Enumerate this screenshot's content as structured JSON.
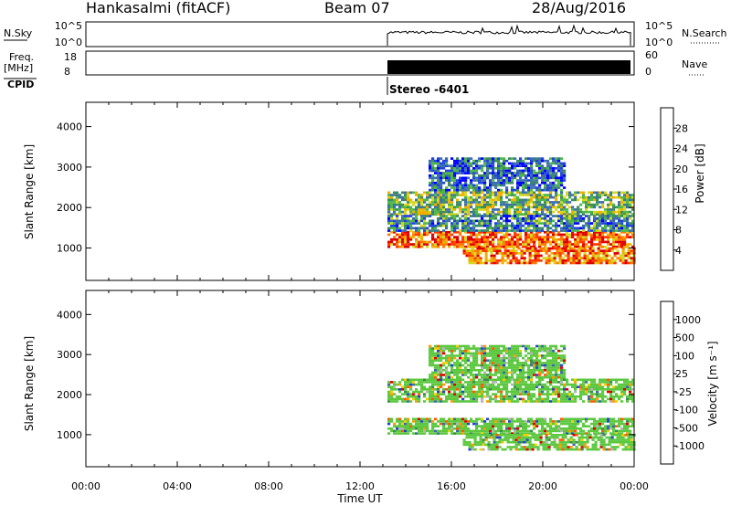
{
  "header": {
    "station": "Hankasalmi (fitACF)",
    "beam": "Beam 07",
    "date": "28/Aug/2016"
  },
  "strip": {
    "nsky_label": "N.Sky",
    "nsky_ticks": [
      "10^5",
      "10^0"
    ],
    "nsearch_ticks": [
      "10^5",
      "10^0"
    ],
    "nsearch_label": "N.Search",
    "freq_label": "Freq.",
    "freq_unit": "[MHz]",
    "freq_ticks": [
      "18",
      "8"
    ],
    "nave_ticks": [
      "60",
      "0"
    ],
    "nave_label": "Nave",
    "cpid_label": "CPID",
    "cpid_value": "Stereo -6401"
  },
  "chart_data": [
    {
      "type": "heatmap",
      "ylabel": "Slant Range [km]",
      "ylim": [
        200,
        4600
      ],
      "yticks": [
        "1000",
        "2000",
        "3000",
        "4000"
      ],
      "xlim_hours": [
        0,
        24
      ],
      "data_start_hour": 13.2,
      "colorbar": {
        "label": "Power [dB]",
        "ticks": [
          "28",
          "24",
          "20",
          "16",
          "12",
          "8",
          "4"
        ],
        "colors": [
          "#0000ff",
          "#2244dd",
          "#3d6fb0",
          "#3c8c5c",
          "#4db848",
          "#d6d820",
          "#f0b000",
          "#ff7a00",
          "#ff3a00",
          "#e00000"
        ]
      },
      "bands": [
        {
          "start": 13.2,
          "end": 24,
          "range_km": [
            1000,
            1400
          ],
          "level": 0.8
        },
        {
          "start": 16.5,
          "end": 24,
          "range_km": [
            600,
            1000
          ],
          "level": 0.75
        },
        {
          "start": 13.2,
          "end": 24,
          "range_km": [
            1800,
            2400
          ],
          "level": 0.45
        },
        {
          "start": 15.0,
          "end": 21.0,
          "range_km": [
            2400,
            3200
          ],
          "level": 0.25
        },
        {
          "start": 13.2,
          "end": 24,
          "range_km": [
            1400,
            1800
          ],
          "level": 0.3
        }
      ]
    },
    {
      "type": "heatmap",
      "ylabel": "Slant Range [km]",
      "ylim": [
        200,
        4600
      ],
      "yticks": [
        "1000",
        "2000",
        "3000",
        "4000"
      ],
      "xlim_hours": [
        0,
        24
      ],
      "data_start_hour": 13.2,
      "colorbar": {
        "label": "Velocity [m s⁻¹]",
        "ticks": [
          "1000",
          "500",
          "100",
          "25",
          "-25",
          "-100",
          "-500",
          "-1000"
        ],
        "colors": [
          "#2244cc",
          "#3b6aa8",
          "#3c8c50",
          "#5cc840",
          "#b4b4b4",
          "#f0d000",
          "#ff9a00",
          "#ff5a00",
          "#e00000"
        ]
      },
      "bands": [
        {
          "start": 13.2,
          "end": 24,
          "range_km": [
            1000,
            1400
          ],
          "level": 0.5
        },
        {
          "start": 13.2,
          "end": 24,
          "range_km": [
            1800,
            2400
          ],
          "level": 0.5
        },
        {
          "start": 16.5,
          "end": 24,
          "range_km": [
            600,
            1000
          ],
          "level": 0.45
        },
        {
          "start": 15.0,
          "end": 21.0,
          "range_km": [
            2400,
            3200
          ],
          "level": 0.4
        }
      ]
    }
  ],
  "xaxis": {
    "ticks": [
      "00:00",
      "04:00",
      "08:00",
      "12:00",
      "16:00",
      "20:00",
      "00:00"
    ],
    "label": "Time UT"
  }
}
